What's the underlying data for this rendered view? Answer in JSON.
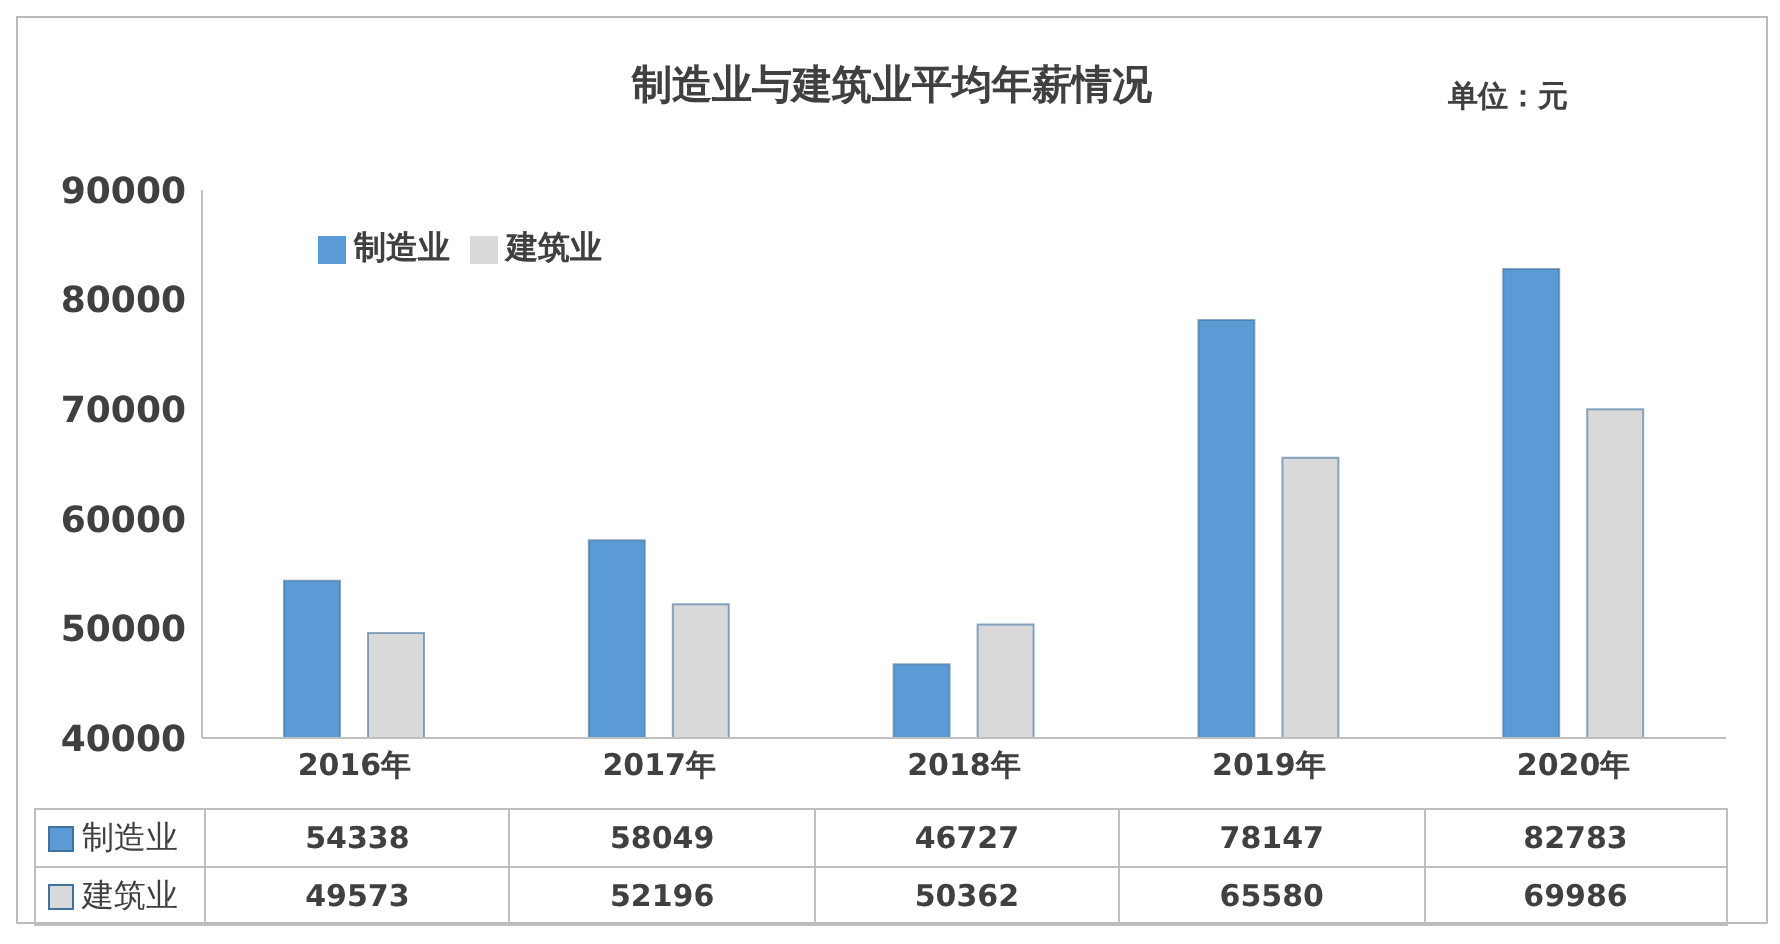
{
  "chart_data": {
    "type": "bar",
    "title": "制造业与建筑业平均年薪情况",
    "annotations": [
      "单位：元"
    ],
    "categories": [
      "2016年",
      "2017年",
      "2018年",
      "2019年",
      "2020年"
    ],
    "series": [
      {
        "name": "制造业",
        "color": "#5b9bd5",
        "values": [
          54338,
          58049,
          46727,
          78147,
          82783
        ]
      },
      {
        "name": "建筑业",
        "color": "#d9d9d9",
        "values": [
          49573,
          52196,
          50362,
          65580,
          69986
        ]
      }
    ],
    "ylim": [
      40000,
      90000
    ],
    "yticks": [
      40000,
      50000,
      60000,
      70000,
      80000,
      90000
    ],
    "legend": "top left",
    "data_labels": true
  }
}
